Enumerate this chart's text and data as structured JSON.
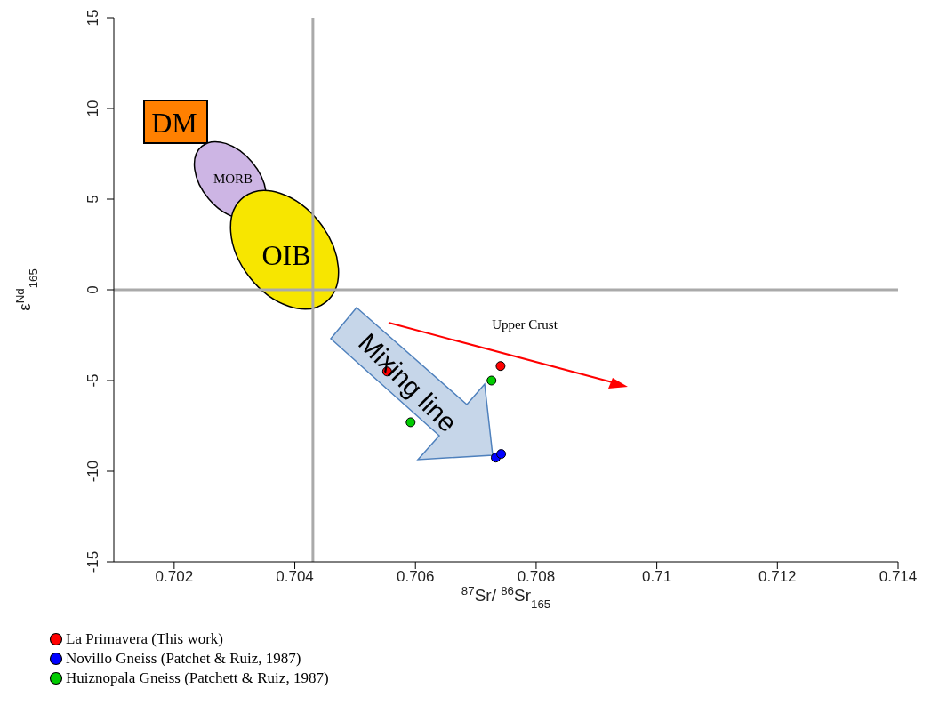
{
  "chart_data": {
    "type": "scatter",
    "xlabel": "$^{87}$Sr/ $^{86}$Sr$_{165}$",
    "ylabel": "ε$^{Nd}$$_{165}$",
    "xlim": [
      0.701,
      0.714
    ],
    "xticks": [
      0.702,
      0.704,
      0.706,
      0.708,
      0.71,
      0.712,
      0.714
    ],
    "ylim": [
      -15,
      15
    ],
    "yticks": [
      -15,
      -10,
      -5,
      0,
      5,
      10,
      15
    ],
    "series": [
      {
        "name": "La Primavera (This work)",
        "color": "#ff0000",
        "x": [
          0.70553,
          0.70741
        ],
        "values": [
          -4.5,
          -4.2
        ]
      },
      {
        "name": "Novillo Gneiss (Patchet & Ruiz, 1987)",
        "color": "#0000ff",
        "x": [
          0.70733,
          0.70742
        ],
        "values": [
          -9.25,
          -9.05
        ]
      },
      {
        "name": "Huiznopala Gneiss (Patchett & Ruiz, 1987)",
        "color": "#00cc00",
        "x": [
          0.70592,
          0.70726
        ],
        "values": [
          -7.3,
          -5.0
        ]
      }
    ],
    "ref_lines": [
      {
        "axis": "x",
        "value": 0.7043,
        "color": "#aaaaaa"
      },
      {
        "axis": "y",
        "value": 0,
        "color": "#aaaaaa"
      }
    ],
    "annotations": [
      "DM",
      "MORB",
      "OIB",
      "Upper Crust",
      "Mixing line"
    ],
    "marker": "circle",
    "legend": "bottom left"
  }
}
